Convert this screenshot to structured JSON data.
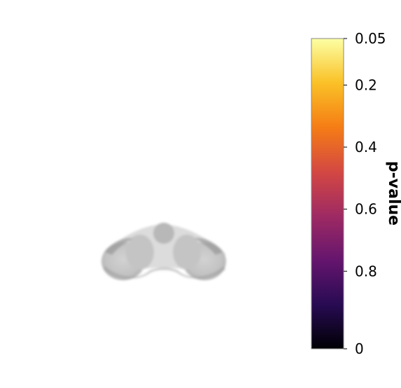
{
  "chart_data": {
    "type": "heatmap",
    "title": "",
    "colorbar": {
      "label": "p-value",
      "colormap": "inferno",
      "colors": [
        "#000004",
        "#280b53",
        "#65156e",
        "#9f2a63",
        "#d44842",
        "#f57d15",
        "#fac127",
        "#fcffa4"
      ],
      "border_color": "#888888",
      "ticks": [
        {
          "label": "0.05",
          "level": 0.0
        },
        {
          "label": "0.2",
          "level": 0.15
        },
        {
          "label": "0.4",
          "level": 0.35
        },
        {
          "label": "0.6",
          "level": 0.55
        },
        {
          "label": "0.8",
          "level": 0.75
        },
        {
          "label": "0",
          "level": 1.0
        }
      ]
    },
    "map": {
      "description_colors": {
        "base": "#c6c6c6",
        "light": "#dcdcdc",
        "shadow": "#8a8a8a",
        "outline": "#b0b0b0"
      }
    }
  }
}
